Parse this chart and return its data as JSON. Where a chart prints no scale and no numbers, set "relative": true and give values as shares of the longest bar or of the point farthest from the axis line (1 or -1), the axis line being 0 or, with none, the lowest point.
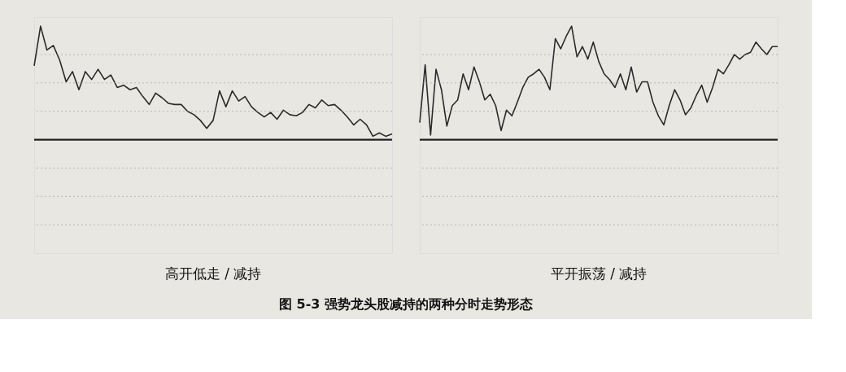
{
  "chart_data": [
    {
      "type": "line",
      "title": "高开低走 / 减持",
      "relative": true,
      "annotations": [
        "图 5-3   强势龙头股减持的两种分时走势形态"
      ],
      "categories": [
        null,
        null,
        null,
        null,
        null,
        null,
        null,
        null,
        null,
        null,
        null,
        null,
        null,
        null,
        null,
        null,
        null,
        null,
        null,
        null,
        null,
        null,
        null,
        null,
        null,
        null,
        null,
        null,
        null,
        null,
        null,
        null,
        null,
        null,
        null,
        null,
        null,
        null,
        null,
        null,
        null,
        null,
        null,
        null,
        null,
        null,
        null,
        null,
        null,
        null,
        null,
        null,
        null,
        null,
        null,
        null,
        null
      ],
      "series": [
        {
          "color": "#2a2a2a",
          "values": [
            0.65,
            1,
            0.79,
            0.83,
            0.7,
            0.51,
            0.6,
            0.44,
            0.6,
            0.53,
            0.62,
            0.53,
            0.57,
            0.46,
            0.48,
            0.44,
            0.46,
            0.38,
            0.31,
            0.41,
            0.37,
            0.32,
            0.31,
            0.31,
            0.25,
            0.22,
            0.17,
            0.1,
            0.17,
            0.43,
            0.29,
            0.43,
            0.34,
            0.38,
            0.29,
            0.24,
            0.2,
            0.24,
            0.18,
            0.26,
            0.22,
            0.21,
            0.24,
            0.31,
            0.28,
            0.35,
            0.3,
            0.31,
            0.26,
            0.2,
            0.13,
            0.18,
            0.13,
            0.03,
            0.06,
            0.03,
            0.05
          ]
        }
      ]
    },
    {
      "type": "line",
      "title": "平开振荡 / 减持",
      "relative": true,
      "categories": [
        null,
        null,
        null,
        null,
        null,
        null,
        null,
        null,
        null,
        null,
        null,
        null,
        null,
        null,
        null,
        null,
        null,
        null,
        null,
        null,
        null,
        null,
        null,
        null,
        null,
        null,
        null,
        null,
        null,
        null,
        null,
        null,
        null,
        null,
        null,
        null,
        null,
        null,
        null,
        null,
        null,
        null,
        null,
        null,
        null,
        null,
        null,
        null,
        null,
        null,
        null,
        null,
        null,
        null,
        null,
        null,
        null,
        null,
        null,
        null,
        null,
        null,
        null,
        null,
        null,
        null,
        null
      ],
      "series": [
        {
          "color": "#2a2a2a",
          "values": [
            0.15,
            0.66,
            0.04,
            0.62,
            0.44,
            0.12,
            0.3,
            0.35,
            0.58,
            0.44,
            0.64,
            0.51,
            0.35,
            0.4,
            0.3,
            0.08,
            0.26,
            0.21,
            0.33,
            0.46,
            0.55,
            0.58,
            0.62,
            0.55,
            0.44,
            0.89,
            0.8,
            0.91,
            1,
            0.73,
            0.82,
            0.71,
            0.86,
            0.69,
            0.58,
            0.53,
            0.46,
            0.58,
            0.44,
            0.64,
            0.42,
            0.51,
            0.51,
            0.33,
            0.21,
            0.13,
            0.3,
            0.44,
            0.35,
            0.22,
            0.28,
            0.39,
            0.48,
            0.33,
            0.46,
            0.62,
            0.58,
            0.66,
            0.75,
            0.71,
            0.75,
            0.77,
            0.86,
            0.8,
            0.75,
            0.82,
            0.82
          ]
        }
      ]
    }
  ]
}
